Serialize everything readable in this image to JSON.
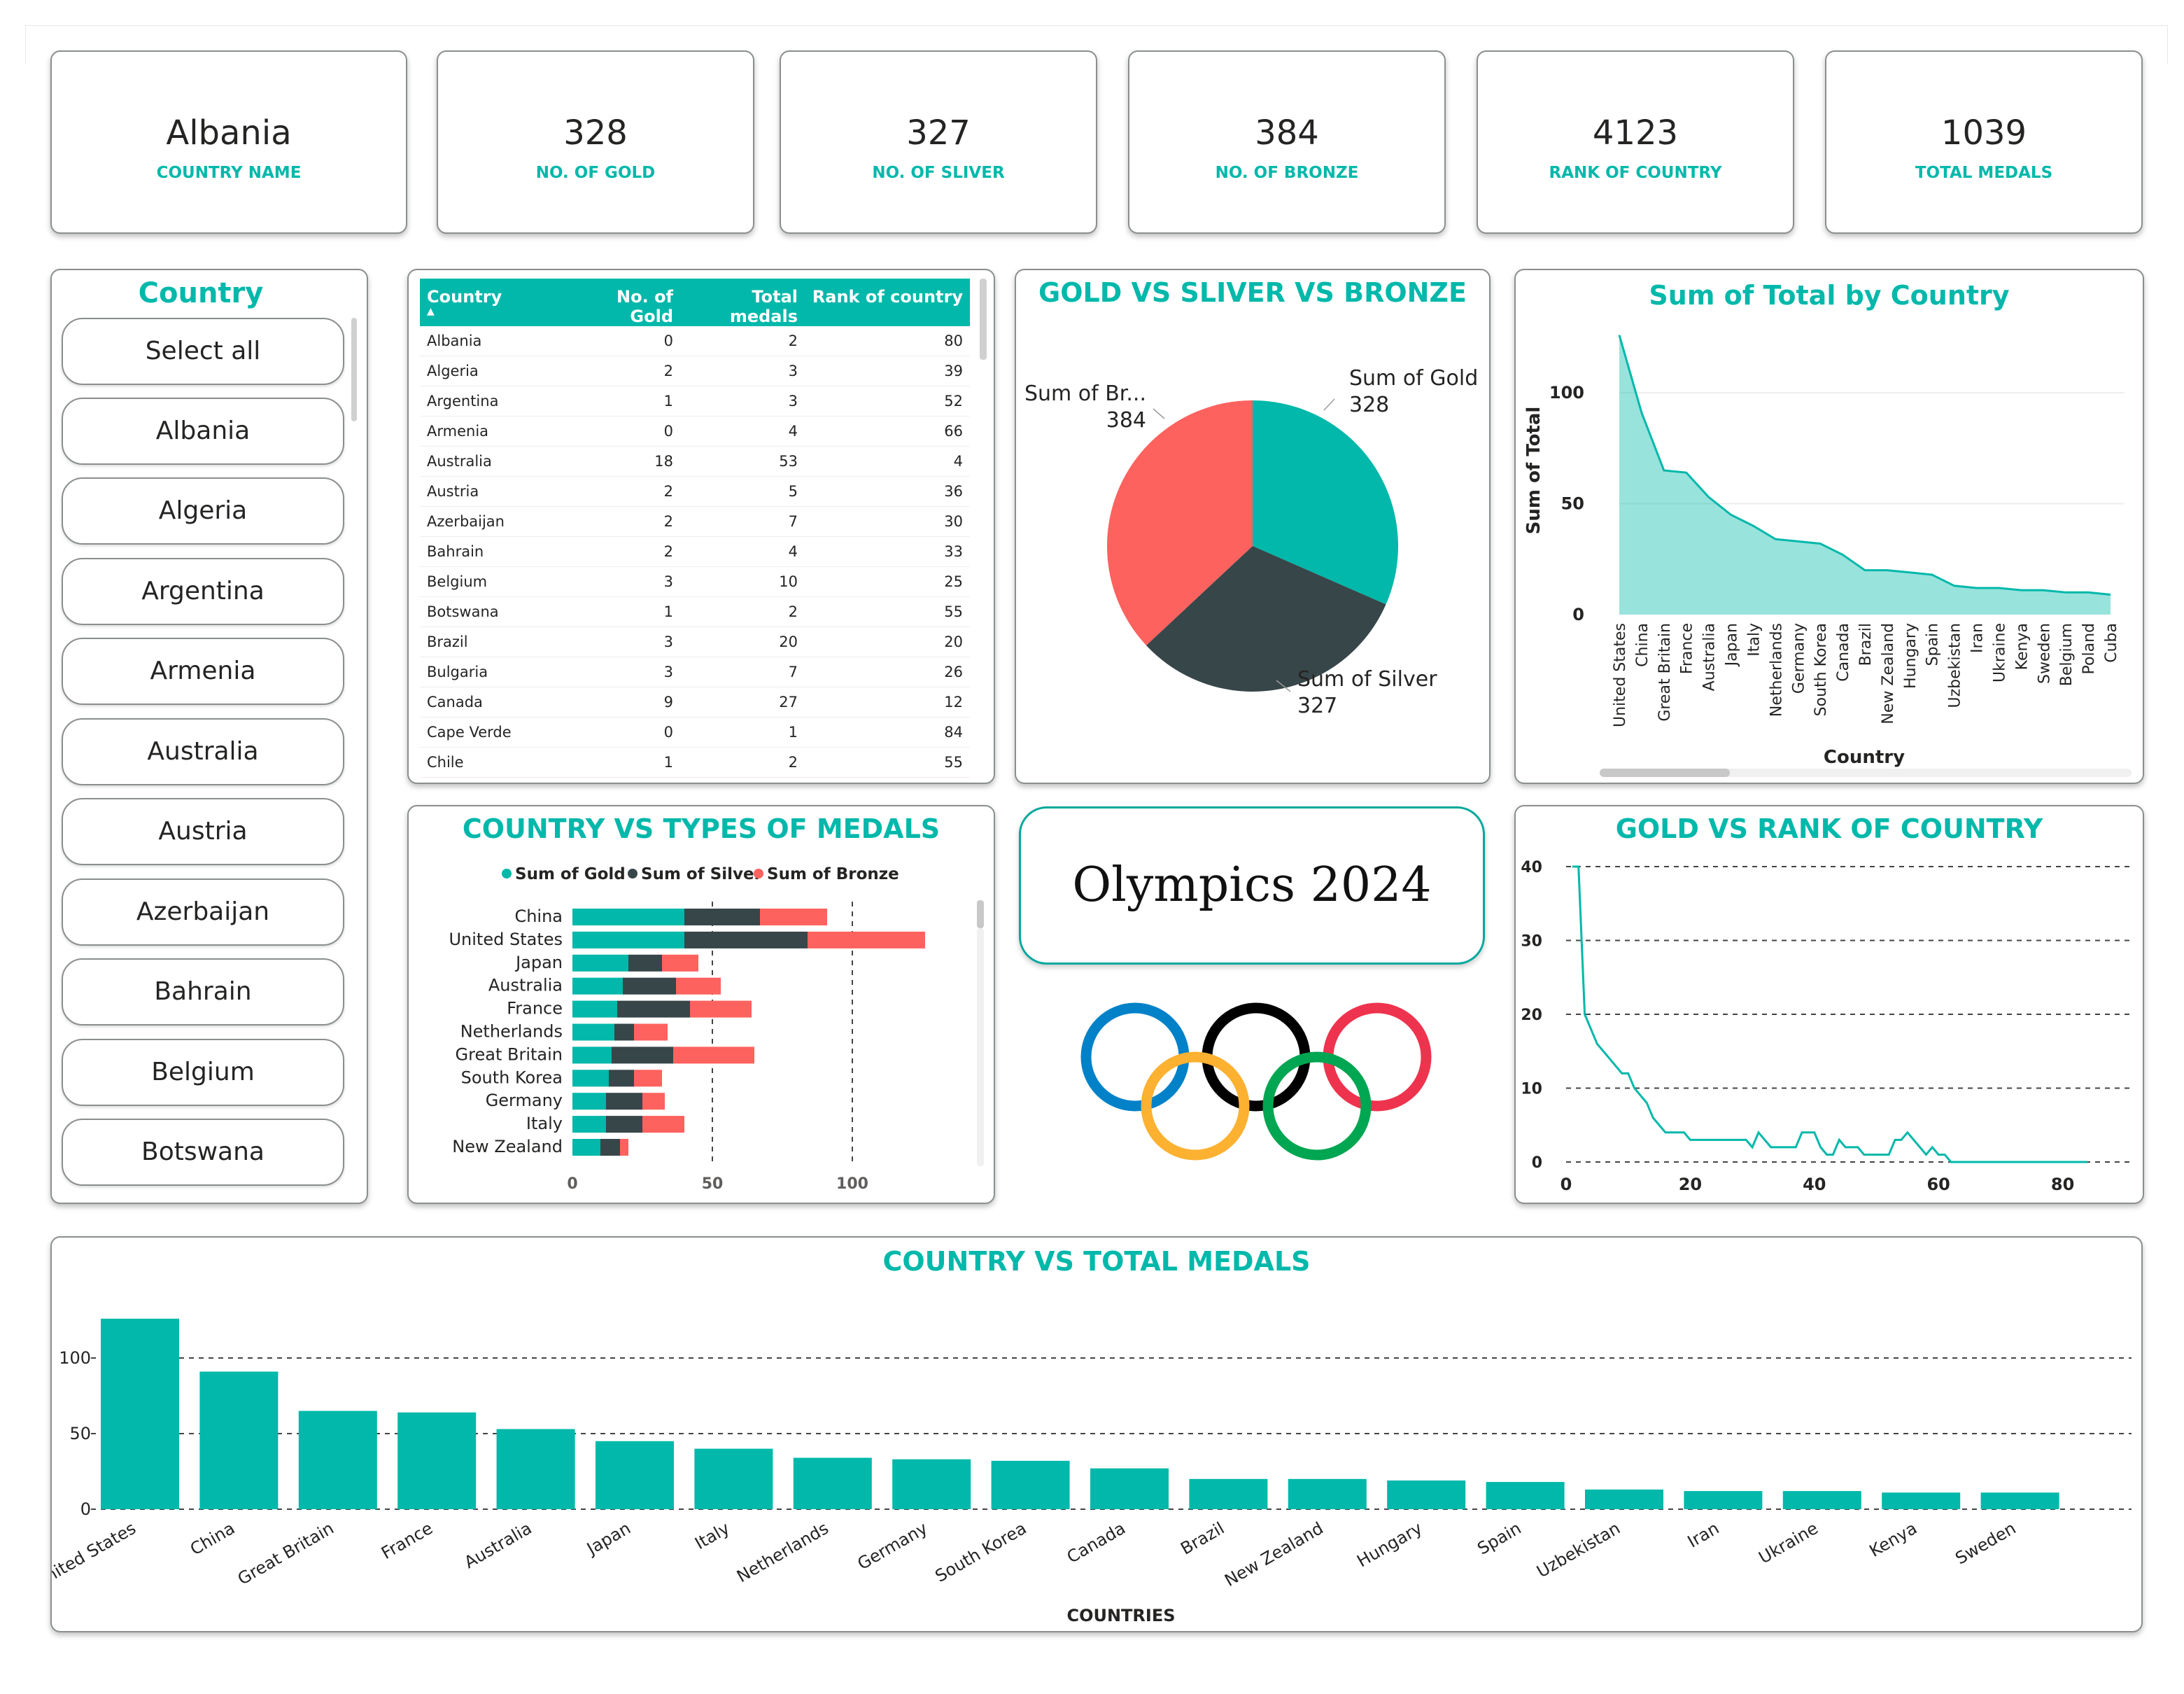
{
  "kpis": [
    {
      "value": "Albania",
      "label": "COUNTRY NAME"
    },
    {
      "value": "328",
      "label": "NO. OF GOLD"
    },
    {
      "value": "327",
      "label": "NO. OF SLIVER"
    },
    {
      "value": "384",
      "label": "NO. OF BRONZE"
    },
    {
      "value": "4123",
      "label": "RANK OF COUNTRY"
    },
    {
      "value": "1039",
      "label": "TOTAL MEDALS"
    }
  ],
  "slicer": {
    "title": "Country",
    "items": [
      "Select all",
      "Albania",
      "Algeria",
      "Argentina",
      "Armenia",
      "Australia",
      "Austria",
      "Azerbaijan",
      "Bahrain",
      "Belgium",
      "Botswana"
    ]
  },
  "table": {
    "headers": [
      "Country",
      "No. of Gold",
      "Total medals",
      "Rank of country"
    ],
    "rows": [
      [
        "Albania",
        "0",
        "2",
        "80"
      ],
      [
        "Algeria",
        "2",
        "3",
        "39"
      ],
      [
        "Argentina",
        "1",
        "3",
        "52"
      ],
      [
        "Armenia",
        "0",
        "4",
        "66"
      ],
      [
        "Australia",
        "18",
        "53",
        "4"
      ],
      [
        "Austria",
        "2",
        "5",
        "36"
      ],
      [
        "Azerbaijan",
        "2",
        "7",
        "30"
      ],
      [
        "Bahrain",
        "2",
        "4",
        "33"
      ],
      [
        "Belgium",
        "3",
        "10",
        "25"
      ],
      [
        "Botswana",
        "1",
        "2",
        "55"
      ],
      [
        "Brazil",
        "3",
        "20",
        "20"
      ],
      [
        "Bulgaria",
        "3",
        "7",
        "26"
      ],
      [
        "Canada",
        "9",
        "27",
        "12"
      ],
      [
        "Cape Verde",
        "0",
        "1",
        "84"
      ],
      [
        "Chile",
        "1",
        "2",
        "55"
      ]
    ]
  },
  "olympics_title": "Olympics 2024",
  "colors": {
    "teal": "#01b8aa",
    "dark": "#374649",
    "coral": "#fd625e",
    "blue": "#0081c8",
    "black": "#000000",
    "red": "#ee334e",
    "yellow": "#fcb131",
    "green": "#00a651"
  },
  "chart_data": [
    {
      "id": "pie",
      "type": "pie",
      "title": "GOLD VS SLIVER VS BRONZE",
      "slices": [
        {
          "name": "Sum of Gold",
          "value": 328
        },
        {
          "name": "Sum of Silver",
          "value": 327
        },
        {
          "name": "Sum of Br...",
          "value": 384
        }
      ]
    },
    {
      "id": "area",
      "type": "area",
      "title": "Sum of Total by Country",
      "xlabel": "Country",
      "ylabel": "Sum of Total",
      "ylim": [
        0,
        130
      ],
      "yticks": [
        0,
        50,
        100
      ],
      "categories": [
        "United States",
        "China",
        "Great Britain",
        "France",
        "Australia",
        "Japan",
        "Italy",
        "Netherlands",
        "Germany",
        "South Korea",
        "Canada",
        "Brazil",
        "New Zealand",
        "Hungary",
        "Spain",
        "Uzbekistan",
        "Iran",
        "Ukraine",
        "Kenya",
        "Sweden",
        "Belgium",
        "Poland",
        "Cuba"
      ],
      "values": [
        126,
        91,
        65,
        64,
        53,
        45,
        40,
        34,
        33,
        32,
        27,
        20,
        20,
        19,
        18,
        13,
        12,
        12,
        11,
        11,
        10,
        10,
        9
      ]
    },
    {
      "id": "stacked",
      "type": "bar",
      "title": "COUNTRY VS TYPES OF MEDALS",
      "legend": "top",
      "xlim": [
        0,
        130
      ],
      "xticks": [
        0,
        50,
        100
      ],
      "categories": [
        "China",
        "United States",
        "Japan",
        "Australia",
        "France",
        "Netherlands",
        "Great Britain",
        "South Korea",
        "Germany",
        "Italy",
        "New Zealand"
      ],
      "series": [
        {
          "name": "Sum of Gold",
          "values": [
            40,
            40,
            20,
            18,
            16,
            15,
            14,
            13,
            12,
            12,
            10
          ]
        },
        {
          "name": "Sum of Silver",
          "values": [
            27,
            44,
            12,
            19,
            26,
            7,
            22,
            9,
            13,
            13,
            7
          ]
        },
        {
          "name": "Sum of Bronze",
          "values": [
            24,
            42,
            13,
            16,
            22,
            12,
            29,
            10,
            8,
            15,
            3
          ]
        }
      ]
    },
    {
      "id": "line",
      "type": "line",
      "title": "GOLD VS RANK OF COUNTRY",
      "xlim": [
        0,
        87
      ],
      "ylim": [
        0,
        40
      ],
      "xticks": [
        0,
        20,
        40,
        60,
        80
      ],
      "yticks": [
        0,
        10,
        20,
        30,
        40
      ],
      "x": [
        1,
        2,
        3,
        4,
        5,
        6,
        7,
        8,
        9,
        10,
        11,
        12,
        13,
        14,
        15,
        16,
        17,
        18,
        19,
        20,
        21,
        22,
        23,
        24,
        25,
        26,
        27,
        28,
        29,
        30,
        31,
        32,
        33,
        34,
        35,
        36,
        37,
        38,
        39,
        40,
        41,
        42,
        43,
        44,
        45,
        46,
        47,
        48,
        49,
        50,
        51,
        52,
        53,
        54,
        55,
        56,
        57,
        58,
        59,
        60,
        61,
        62,
        63,
        64,
        65,
        66,
        67,
        68,
        69,
        70,
        71,
        72,
        73,
        74,
        75,
        76,
        77,
        78,
        79,
        80,
        81,
        82,
        83,
        84
      ],
      "y": [
        40,
        40,
        20,
        18,
        16,
        15,
        14,
        13,
        12,
        12,
        10,
        9,
        8,
        6,
        5,
        4,
        4,
        4,
        4,
        3,
        3,
        3,
        3,
        3,
        3,
        3,
        3,
        3,
        3,
        2,
        4,
        3,
        2,
        2,
        2,
        2,
        2,
        4,
        4,
        4,
        2,
        1,
        1,
        3,
        2,
        2,
        2,
        1,
        1,
        1,
        1,
        1,
        3,
        3,
        4,
        3,
        2,
        1,
        2,
        1,
        1,
        0,
        0,
        0,
        0,
        0,
        0,
        0,
        0,
        0,
        0,
        0,
        0,
        0,
        0,
        0,
        0,
        0,
        0,
        0,
        0,
        0,
        0,
        0
      ]
    },
    {
      "id": "bottom",
      "type": "bar",
      "title": "COUNTRY VS TOTAL MEDALS",
      "xlabel": "COUNTRIES",
      "ylim": [
        0,
        130
      ],
      "yticks": [
        0,
        50,
        100
      ],
      "categories": [
        "United States",
        "China",
        "Great Britain",
        "France",
        "Australia",
        "Japan",
        "Italy",
        "Netherlands",
        "Germany",
        "South Korea",
        "Canada",
        "Brazil",
        "New Zealand",
        "Hungary",
        "Spain",
        "Uzbekistan",
        "Iran",
        "Ukraine",
        "Kenya",
        "Sweden"
      ],
      "values": [
        126,
        91,
        65,
        64,
        53,
        45,
        40,
        34,
        33,
        32,
        27,
        20,
        20,
        19,
        18,
        13,
        12,
        12,
        11,
        11
      ]
    }
  ]
}
